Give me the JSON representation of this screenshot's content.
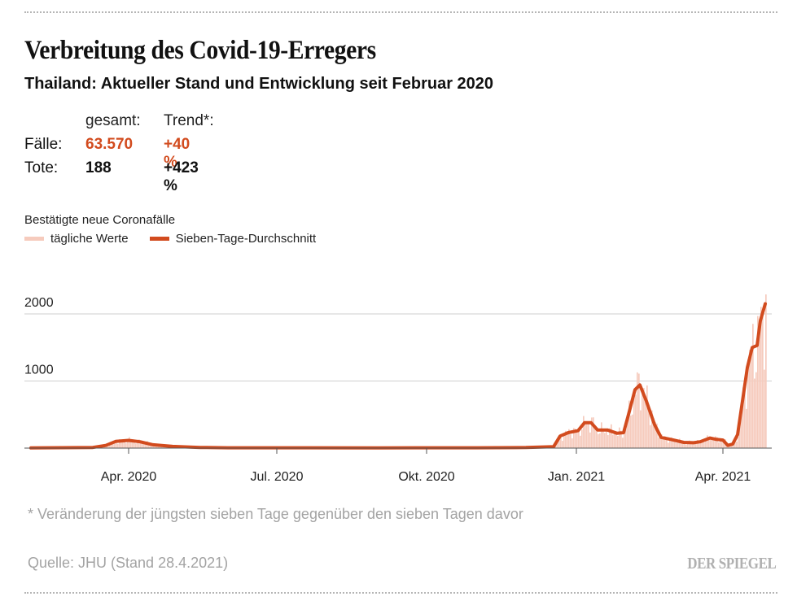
{
  "header": {
    "title": "Verbreitung des Covid-19-Erregers",
    "subtitle": "Thailand: Aktueller Stand und Entwicklung seit Februar 2020"
  },
  "stats": {
    "col_total": "gesamt:",
    "col_trend": "Trend*:",
    "rows": [
      {
        "label": "Fälle:",
        "total": "63.570",
        "trend": "+40 %"
      },
      {
        "label": "Tote:",
        "total": "188",
        "trend": "+423 %"
      }
    ]
  },
  "legend": {
    "title": "Bestätigte neue Coronafälle",
    "daily": "tägliche Werte",
    "average": "Sieben-Tage-Durchschnitt"
  },
  "colors": {
    "daily": "#f6cbbd",
    "average": "#d24b1e",
    "accent": "#d24b1e",
    "grid": "#cfcfcf"
  },
  "chart_data": {
    "type": "line",
    "x_start": "2020-02-01",
    "x_end": "2021-04-27",
    "ylim": [
      0,
      2800
    ],
    "yticks": [
      1000,
      2000
    ],
    "ytick_labels": [
      "1000",
      "2000"
    ],
    "xticks": [
      {
        "date": "2020-04-01",
        "label": "Apr. 2020"
      },
      {
        "date": "2020-07-01",
        "label": "Jul. 2020"
      },
      {
        "date": "2020-10-01",
        "label": "Okt. 2020"
      },
      {
        "date": "2021-01-01",
        "label": "Jan. 2021"
      },
      {
        "date": "2021-04-01",
        "label": "Apr. 2021"
      }
    ],
    "series": [
      {
        "kind": "average",
        "points": [
          [
            "2020-02-01",
            3
          ],
          [
            "2020-03-10",
            10
          ],
          [
            "2020-03-18",
            40
          ],
          [
            "2020-03-24",
            100
          ],
          [
            "2020-04-01",
            115
          ],
          [
            "2020-04-08",
            95
          ],
          [
            "2020-04-16",
            50
          ],
          [
            "2020-04-28",
            25
          ],
          [
            "2020-05-15",
            10
          ],
          [
            "2020-06-01",
            5
          ],
          [
            "2020-09-01",
            4
          ],
          [
            "2020-11-01",
            5
          ],
          [
            "2020-12-01",
            8
          ],
          [
            "2020-12-18",
            20
          ],
          [
            "2020-12-22",
            180
          ],
          [
            "2020-12-27",
            230
          ],
          [
            "2021-01-02",
            260
          ],
          [
            "2021-01-06",
            380
          ],
          [
            "2021-01-10",
            380
          ],
          [
            "2021-01-14",
            270
          ],
          [
            "2021-01-20",
            270
          ],
          [
            "2021-01-26",
            220
          ],
          [
            "2021-01-30",
            230
          ],
          [
            "2021-02-02",
            500
          ],
          [
            "2021-02-06",
            870
          ],
          [
            "2021-02-09",
            940
          ],
          [
            "2021-02-13",
            700
          ],
          [
            "2021-02-18",
            350
          ],
          [
            "2021-02-22",
            160
          ],
          [
            "2021-02-28",
            130
          ],
          [
            "2021-03-08",
            85
          ],
          [
            "2021-03-14",
            80
          ],
          [
            "2021-03-18",
            95
          ],
          [
            "2021-03-24",
            150
          ],
          [
            "2021-03-28",
            130
          ],
          [
            "2021-04-01",
            120
          ],
          [
            "2021-04-04",
            40
          ],
          [
            "2021-04-07",
            60
          ],
          [
            "2021-04-10",
            200
          ],
          [
            "2021-04-13",
            700
          ],
          [
            "2021-04-16",
            1200
          ],
          [
            "2021-04-19",
            1500
          ],
          [
            "2021-04-22",
            1530
          ],
          [
            "2021-04-24",
            1900
          ],
          [
            "2021-04-27",
            2150
          ]
        ]
      }
    ]
  },
  "footer": {
    "footnote": "* Veränderung der jüngsten sieben Tage gegenüber den sieben Tagen davor",
    "source": "Quelle: JHU (Stand 28.4.2021)",
    "logo": "DER SPIEGEL"
  }
}
